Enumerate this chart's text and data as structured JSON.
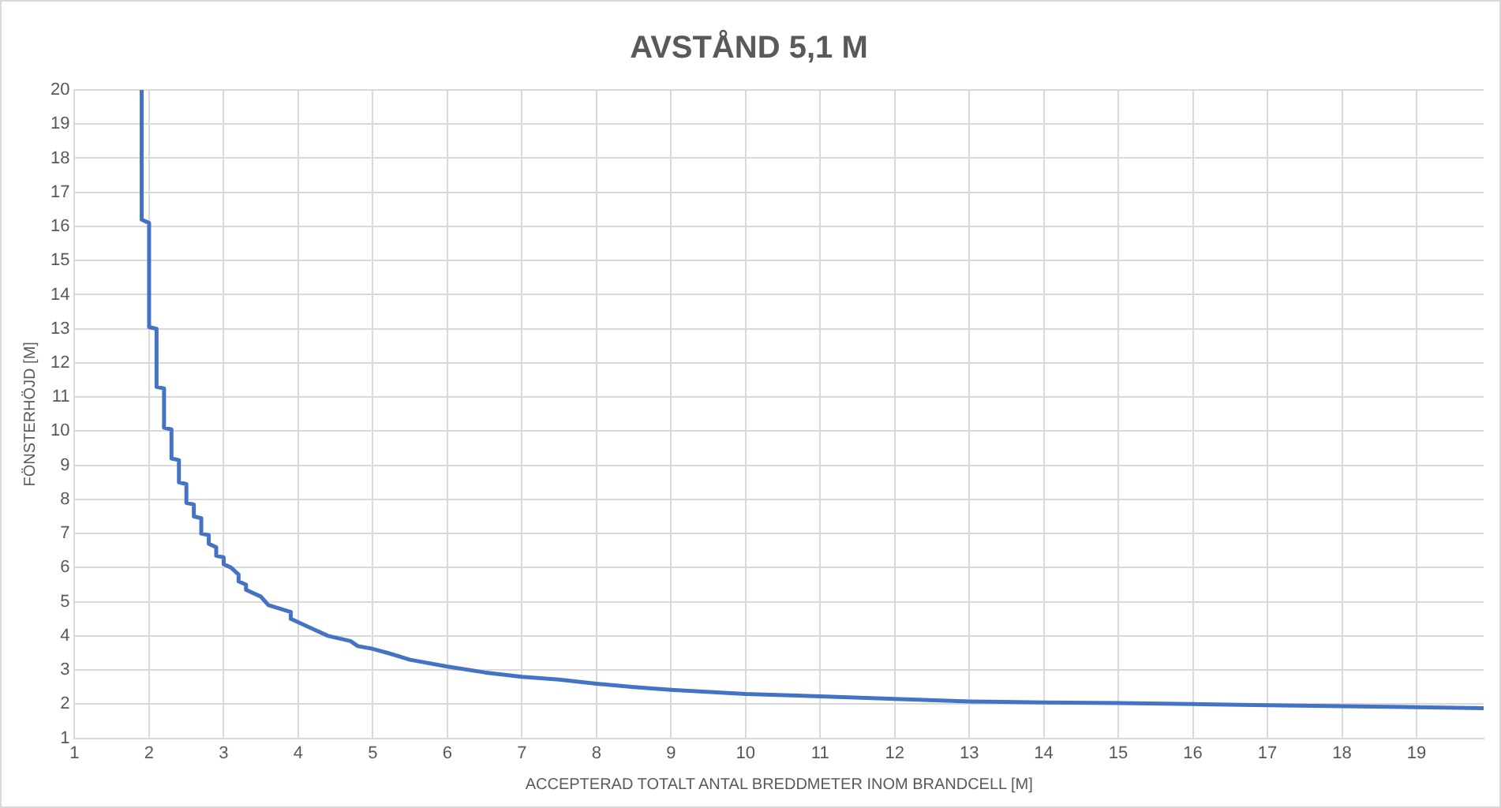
{
  "chart_data": {
    "type": "line",
    "title": "AVSTÅND 5,1 M",
    "xlabel": "ACCEPTERAD TOTALT ANTAL BREDDMETER INOM BRANDCELL [M]",
    "ylabel": "FÖNSTERHÖJD [M]",
    "xlim": [
      1,
      19.9
    ],
    "xticks": [
      1,
      2,
      3,
      4,
      5,
      6,
      7,
      8,
      9,
      10,
      11,
      12,
      13,
      14,
      15,
      16,
      17,
      18,
      19
    ],
    "ylim": [
      1,
      20
    ],
    "yticks": [
      1,
      2,
      3,
      4,
      5,
      6,
      7,
      8,
      9,
      10,
      11,
      12,
      13,
      14,
      15,
      16,
      17,
      18,
      19,
      20
    ],
    "grid": true,
    "legend": false,
    "marker": "none",
    "line_style": "solid",
    "series": [
      {
        "color": "#4472c4",
        "x": [
          1.9,
          1.9,
          2.0,
          2.0,
          2.1,
          2.1,
          2.2,
          2.2,
          2.3,
          2.3,
          2.4,
          2.4,
          2.5,
          2.5,
          2.6,
          2.6,
          2.7,
          2.7,
          2.8,
          2.8,
          2.9,
          2.9,
          3.0,
          3.0,
          3.1,
          3.2,
          3.2,
          3.3,
          3.3,
          3.5,
          3.6,
          3.9,
          3.9,
          4.2,
          4.4,
          4.7,
          4.8,
          5.0,
          5.2,
          5.5,
          6,
          6.5,
          7,
          7.5,
          8,
          8.5,
          9,
          10,
          11,
          12,
          13,
          14,
          15,
          16,
          17,
          18,
          19,
          19.9
        ],
        "values": [
          20,
          16.2,
          16.1,
          13.05,
          13.0,
          11.3,
          11.25,
          10.1,
          10.05,
          9.2,
          9.15,
          8.5,
          8.45,
          7.9,
          7.85,
          7.5,
          7.45,
          7.0,
          6.95,
          6.7,
          6.6,
          6.35,
          6.3,
          6.1,
          6.0,
          5.8,
          5.6,
          5.5,
          5.35,
          5.15,
          4.9,
          4.7,
          4.5,
          4.2,
          4.0,
          3.85,
          3.7,
          3.62,
          3.5,
          3.3,
          3.1,
          2.93,
          2.8,
          2.72,
          2.6,
          2.5,
          2.42,
          2.3,
          2.23,
          2.15,
          2.08,
          2.05,
          2.03,
          2.0,
          1.97,
          1.94,
          1.91,
          1.88
        ]
      }
    ]
  }
}
